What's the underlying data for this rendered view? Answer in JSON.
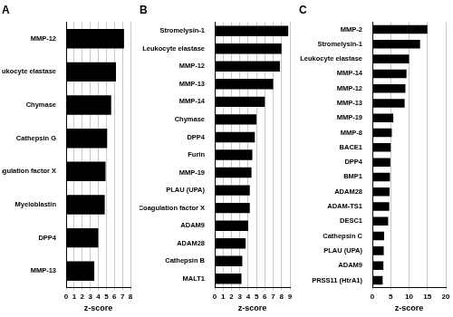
{
  "chart_data": [
    {
      "type": "bar",
      "title": "A",
      "orientation": "horizontal",
      "grid": true,
      "color": "#000000",
      "x_label": "z-score",
      "categories": [
        "MMP-12",
        "Leukocyte elastase",
        "Chymase",
        "Cathepsin G",
        "Coagulation factor X",
        "Myeloblastin",
        "DPP4",
        "MMP-13"
      ],
      "values": [
        7.2,
        6.2,
        5.6,
        5.1,
        4.9,
        4.8,
        4.0,
        3.5
      ],
      "xlim": [
        0,
        8
      ],
      "xticks": [
        0,
        1,
        2,
        3,
        4,
        5,
        6,
        7,
        8
      ]
    },
    {
      "type": "bar",
      "title": "B",
      "orientation": "horizontal",
      "grid": true,
      "color": "#000000",
      "x_label": "z-score",
      "categories": [
        "Stromelysin-1",
        "Leukocyte elastase",
        "MMP-12",
        "MMP-13",
        "MMP-14",
        "Chymase",
        "DPP4",
        "Furin",
        "MMP-19",
        "PLAU (UPA)",
        "Coagulation factor X",
        "ADAM9",
        "ADAM28",
        "Cathepsin B",
        "MALT1"
      ],
      "values": [
        8.8,
        8.0,
        7.8,
        7.0,
        6.0,
        5.0,
        4.8,
        4.5,
        4.4,
        4.2,
        4.2,
        4.0,
        3.7,
        3.3,
        3.2
      ],
      "xlim": [
        0,
        9
      ],
      "xticks": [
        0,
        1,
        2,
        3,
        4,
        5,
        6,
        7,
        8,
        9
      ]
    },
    {
      "type": "bar",
      "title": "C",
      "orientation": "horizontal",
      "grid": true,
      "color": "#000000",
      "x_label": "z-score",
      "categories": [
        "MMP-2",
        "Stromelysin-1",
        "Leukocyte elastase",
        "MMP-14",
        "MMP-12",
        "MMP-13",
        "MMP-19",
        "MMP-8",
        "BACE1",
        "DPP4",
        "BMP1",
        "ADAM28",
        "ADAM-TS1",
        "DESC1",
        "Cathepsin C",
        "PLAU (UPA)",
        "ADAM9",
        "PRSS11 (HtrA1)"
      ],
      "values": [
        15.0,
        13.0,
        10.0,
        9.3,
        9.0,
        8.8,
        5.7,
        5.3,
        5.0,
        4.9,
        4.8,
        4.7,
        4.6,
        4.3,
        3.2,
        3.1,
        3.0,
        2.8
      ],
      "xlim": [
        0,
        20
      ],
      "xticks": [
        0,
        5,
        10,
        15,
        20
      ]
    }
  ]
}
